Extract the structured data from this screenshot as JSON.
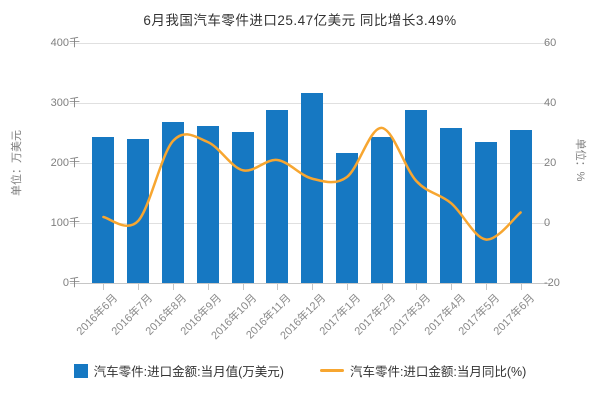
{
  "title": "6月我国汽车零件进口25.47亿美元 同比增长3.49%",
  "chart_data": {
    "type": "bar",
    "subtype": "bar-and-line-dual-axis",
    "categories": [
      "2016年6月",
      "2016年7月",
      "2016年8月",
      "2016年9月",
      "2016年10月",
      "2016年11月",
      "2016年12月",
      "2017年1月",
      "2017年2月",
      "2017年3月",
      "2017年4月",
      "2017年5月",
      "2017年6月"
    ],
    "series": [
      {
        "name": "汽车零件:进口金额:当月值(万美元)",
        "type": "bar",
        "axis": "left",
        "unit": "千(万美元)",
        "color": "#1678c2",
        "values": [
          244,
          240,
          268,
          261,
          251,
          288,
          316,
          216,
          243,
          288,
          258,
          235,
          254.7
        ]
      },
      {
        "name": "汽车零件:进口金额:当月同比(%)",
        "type": "line",
        "axis": "right",
        "unit": "%",
        "color": "#f7a630",
        "values": [
          2,
          0.7,
          27.3,
          27,
          17.6,
          21,
          14.8,
          15.3,
          31.7,
          14,
          6.6,
          -5.5,
          3.49
        ]
      }
    ],
    "left_axis": {
      "name": "单位：万美元",
      "ticks": [
        "400千",
        "300千",
        "200千",
        "100千",
        "0千"
      ],
      "min": 0,
      "max": 400
    },
    "right_axis": {
      "name": "单位：%",
      "ticks": [
        "60",
        "40",
        "20",
        "0",
        "-20"
      ],
      "min": -20,
      "max": 60
    },
    "grid": true,
    "legend_position": "bottom"
  },
  "colors": {
    "bar": "#1678c2",
    "line": "#f7a630",
    "grid": "#e0e0e0",
    "axis_line": "#c6c6c6",
    "tick_label": "#7f7f7f",
    "x_label": "#8a8a8a",
    "title": "#333333",
    "legend_text": "#333333",
    "background": "#ffffff"
  }
}
